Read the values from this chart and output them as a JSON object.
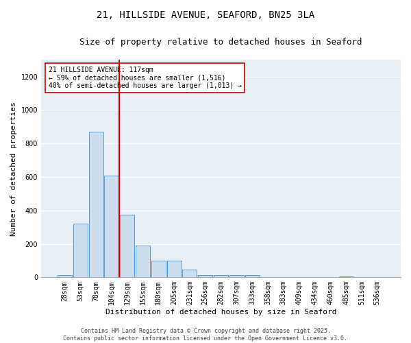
{
  "title": "21, HILLSIDE AVENUE, SEAFORD, BN25 3LA",
  "subtitle": "Size of property relative to detached houses in Seaford",
  "xlabel": "Distribution of detached houses by size in Seaford",
  "ylabel": "Number of detached properties",
  "categories": [
    "28sqm",
    "53sqm",
    "78sqm",
    "104sqm",
    "129sqm",
    "155sqm",
    "180sqm",
    "205sqm",
    "231sqm",
    "256sqm",
    "282sqm",
    "307sqm",
    "333sqm",
    "358sqm",
    "383sqm",
    "409sqm",
    "434sqm",
    "460sqm",
    "485sqm",
    "511sqm",
    "536sqm"
  ],
  "values": [
    12,
    320,
    870,
    610,
    375,
    190,
    100,
    100,
    45,
    15,
    15,
    15,
    15,
    3,
    3,
    3,
    3,
    3,
    6,
    3,
    1
  ],
  "bar_color": "#ccdded",
  "bar_edgecolor": "#5b9bd5",
  "bar_linewidth": 0.7,
  "vline_color": "#cc0000",
  "vline_linewidth": 1.5,
  "vline_xindex": 3.5,
  "annotation_text": "21 HILLSIDE AVENUE: 117sqm\n← 59% of detached houses are smaller (1,516)\n40% of semi-detached houses are larger (1,013) →",
  "annotation_box_edgecolor": "#cc0000",
  "annotation_box_facecolor": "white",
  "ylim": [
    0,
    1300
  ],
  "yticks": [
    0,
    200,
    400,
    600,
    800,
    1000,
    1200
  ],
  "background_color": "#e8eef6",
  "grid_color": "white",
  "title_fontsize": 10,
  "subtitle_fontsize": 9,
  "xlabel_fontsize": 8,
  "ylabel_fontsize": 8,
  "tick_fontsize": 7,
  "annot_fontsize": 7,
  "footer_text": "Contains HM Land Registry data © Crown copyright and database right 2025.\nContains public sector information licensed under the Open Government Licence v3.0.",
  "footer_fontsize": 6
}
